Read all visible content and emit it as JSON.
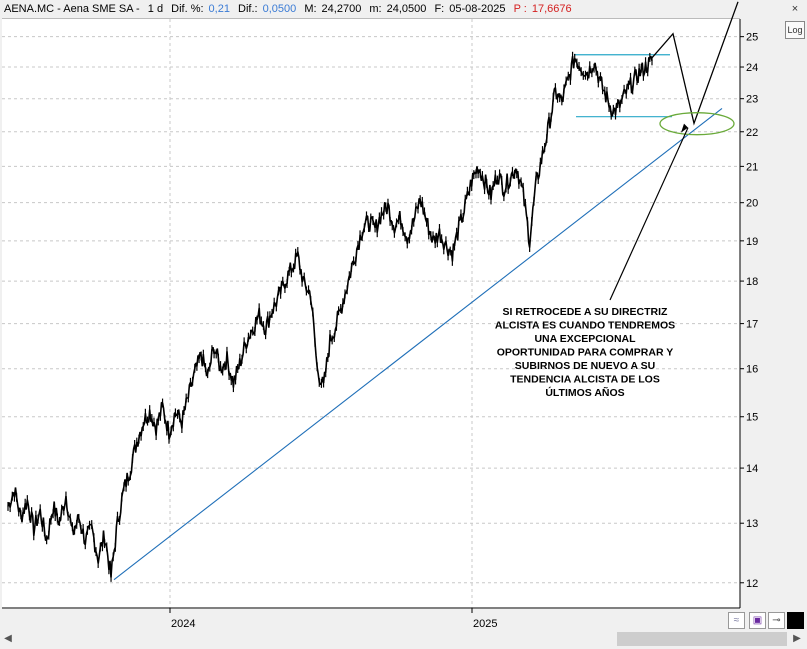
{
  "header": {
    "symbol": "AENA.MC - Aena SME SA -",
    "interval": "1 d",
    "diff_pct_label": "Dif. %:",
    "diff_pct_value": "0,21",
    "diff_label": "Dif.:",
    "diff_value": "0,0500",
    "max_label": "M:",
    "max_value": "24,2700",
    "min_label": "m:",
    "min_value": "24,0500",
    "date_label": "F:",
    "date_value": "05-08-2025",
    "price_label": "P :",
    "price_value": "17,6676"
  },
  "controls": {
    "log_label": "Log",
    "close_label": "×",
    "wave_icon": "wave-icon",
    "save_icon": "save-icon",
    "pin_icon": "pin-icon",
    "color_box": "#000000"
  },
  "annotation": {
    "lines": [
      "SI RETROCEDE A SU DIRECTRIZ",
      "ALCISTA ES CUANDO TENDREMOS",
      "UNA EXCEPCIONAL",
      "OPORTUNIDAD PARA COMPRAR Y",
      "SUBIRNOS DE NUEVO A SU",
      "TENDENCIA ALCISTA DE LOS",
      "ÚLTIMOS AÑOS"
    ]
  },
  "colors": {
    "price": "#000000",
    "trendline": "#1f6fb8",
    "range_lines": "#2aa8c8",
    "ellipse": "#6aaa3a",
    "grid": "#c8c8c8"
  },
  "chart_data": {
    "type": "line",
    "title": "",
    "xlabel": "",
    "ylabel": "",
    "scale": "log",
    "ylim": [
      11.6,
      25.6
    ],
    "grid": true,
    "y_ticks": [
      12,
      13,
      14,
      15,
      16,
      17,
      18,
      19,
      20,
      21,
      22,
      23,
      24,
      25
    ],
    "x_tick_labels": [
      "2024",
      "2025"
    ],
    "series": [
      {
        "values": [
          13.3,
          13.6,
          13.1,
          13.4,
          12.9,
          13.2,
          12.7,
          13.3,
          13.0,
          13.5,
          12.8,
          13.1,
          12.7,
          12.9,
          12.4,
          12.8,
          12.1,
          13.0,
          13.6,
          14.0,
          14.5,
          14.9,
          15.1,
          14.8,
          15.2,
          14.7,
          15.1,
          14.9,
          15.4,
          15.9,
          16.3,
          15.8,
          16.5,
          16.0,
          16.2,
          15.7,
          16.1,
          16.6,
          16.9,
          17.2,
          16.9,
          17.3,
          17.6,
          18.0,
          18.3,
          18.6,
          17.9,
          17.7,
          16.0,
          15.6,
          16.6,
          17.0,
          17.5,
          18.1,
          18.7,
          19.3,
          19.5,
          19.3,
          19.7,
          19.9,
          19.4,
          19.6,
          19.1,
          19.5,
          20.1,
          19.5,
          19.0,
          19.2,
          18.9,
          18.7,
          19.3,
          19.9,
          20.6,
          21.0,
          20.6,
          20.2,
          20.8,
          20.4,
          20.7,
          21.0,
          20.2,
          19.0,
          20.5,
          21.3,
          22.2,
          23.2,
          22.9,
          23.6,
          24.3,
          24.0,
          23.8,
          24.2,
          23.5,
          23.0,
          22.6,
          22.8,
          23.2,
          23.5,
          23.8,
          24.0,
          24.2
        ]
      }
    ],
    "overlays": {
      "trendline": [
        [
          0.1,
          12.05
        ],
        [
          1.88,
          22.7
        ]
      ],
      "resistance": 24.4,
      "support": 22.45,
      "projection": [
        24.3,
        25.1,
        22.25,
        26.2
      ],
      "target_zone_center": 22.3
    }
  }
}
